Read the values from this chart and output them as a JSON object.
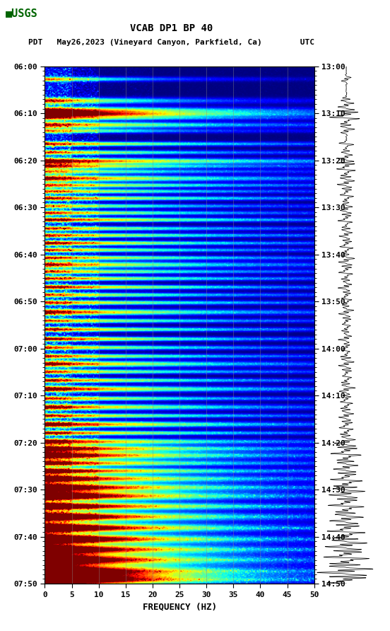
{
  "title_line1": "VCAB DP1 BP 40",
  "title_line2_left": "PDT   May26,2023 (Vineyard Canyon, Parkfield, Ca)        UTC",
  "left_yticks": [
    "06:00",
    "06:10",
    "06:20",
    "06:30",
    "06:40",
    "06:50",
    "07:00",
    "07:10",
    "07:20",
    "07:30",
    "07:40",
    "07:50"
  ],
  "right_yticks": [
    "13:00",
    "13:10",
    "13:20",
    "13:30",
    "13:40",
    "13:50",
    "14:00",
    "14:10",
    "14:20",
    "14:30",
    "14:40",
    "14:50"
  ],
  "xlabel": "FREQUENCY (HZ)",
  "xticks": [
    0,
    5,
    10,
    15,
    20,
    25,
    30,
    35,
    40,
    45,
    50
  ],
  "xtick_labels": [
    "0",
    "5",
    "10",
    "15",
    "20",
    "25",
    "30",
    "35",
    "40",
    "45",
    "50"
  ],
  "freq_max": 50,
  "logo_color": "#006400",
  "noise_seed": 42,
  "waveform_color": "#000000",
  "n_time": 600,
  "n_freq": 250,
  "event_rows": [
    [
      15,
      2.5,
      3,
      0.7
    ],
    [
      40,
      3.0,
      4,
      0.6
    ],
    [
      52,
      4.5,
      5,
      0.5
    ],
    [
      56,
      3.5,
      3,
      0.55
    ],
    [
      60,
      2.8,
      3,
      0.5
    ],
    [
      68,
      3.2,
      4,
      0.45
    ],
    [
      75,
      2.5,
      3,
      0.6
    ],
    [
      90,
      3.0,
      3,
      0.4
    ],
    [
      100,
      2.8,
      3,
      0.45
    ],
    [
      110,
      4.0,
      4,
      0.4
    ],
    [
      116,
      3.2,
      3,
      0.5
    ],
    [
      122,
      2.5,
      3,
      0.45
    ],
    [
      130,
      3.5,
      4,
      0.42
    ],
    [
      138,
      3.0,
      3,
      0.4
    ],
    [
      145,
      2.8,
      3,
      0.45
    ],
    [
      153,
      3.2,
      3,
      0.4
    ],
    [
      162,
      2.5,
      3,
      0.42
    ],
    [
      170,
      3.0,
      3,
      0.44
    ],
    [
      178,
      3.5,
      3,
      0.4
    ],
    [
      188,
      2.8,
      3,
      0.42
    ],
    [
      196,
      3.0,
      3,
      0.4
    ],
    [
      205,
      3.5,
      3,
      0.44
    ],
    [
      213,
      2.8,
      3,
      0.42
    ],
    [
      222,
      3.0,
      3,
      0.4
    ],
    [
      230,
      3.2,
      4,
      0.42
    ],
    [
      238,
      2.8,
      3,
      0.4
    ],
    [
      246,
      3.0,
      3,
      0.4
    ],
    [
      256,
      3.5,
      3,
      0.44
    ],
    [
      265,
      2.8,
      3,
      0.42
    ],
    [
      274,
      3.0,
      3,
      0.4
    ],
    [
      285,
      3.5,
      4,
      0.44
    ],
    [
      295,
      2.8,
      3,
      0.42
    ],
    [
      305,
      3.2,
      3,
      0.44
    ],
    [
      316,
      3.5,
      3,
      0.46
    ],
    [
      326,
      2.8,
      3,
      0.42
    ],
    [
      336,
      3.0,
      3,
      0.44
    ],
    [
      345,
      3.5,
      4,
      0.45
    ],
    [
      354,
      2.8,
      3,
      0.42
    ],
    [
      364,
      3.2,
      3,
      0.44
    ],
    [
      374,
      3.8,
      4,
      0.46
    ],
    [
      385,
      3.0,
      3,
      0.44
    ],
    [
      395,
      3.5,
      4,
      0.46
    ],
    [
      405,
      3.2,
      3,
      0.44
    ],
    [
      415,
      4.0,
      4,
      0.46
    ],
    [
      425,
      3.5,
      3,
      0.44
    ],
    [
      435,
      4.0,
      4,
      0.5
    ],
    [
      443,
      4.5,
      4,
      0.52
    ],
    [
      451,
      5.0,
      5,
      0.55
    ],
    [
      460,
      4.0,
      4,
      0.5
    ],
    [
      469,
      4.5,
      4,
      0.52
    ],
    [
      478,
      5.0,
      5,
      0.55
    ],
    [
      488,
      5.5,
      5,
      0.58
    ],
    [
      498,
      6.0,
      6,
      0.6
    ],
    [
      510,
      5.5,
      5,
      0.55
    ],
    [
      522,
      6.0,
      6,
      0.6
    ],
    [
      535,
      6.5,
      6,
      0.62
    ],
    [
      548,
      7.0,
      6,
      0.65
    ],
    [
      560,
      6.5,
      6,
      0.62
    ],
    [
      572,
      7.0,
      7,
      0.65
    ],
    [
      585,
      7.5,
      7,
      0.68
    ],
    [
      595,
      8.0,
      7,
      0.7
    ]
  ]
}
